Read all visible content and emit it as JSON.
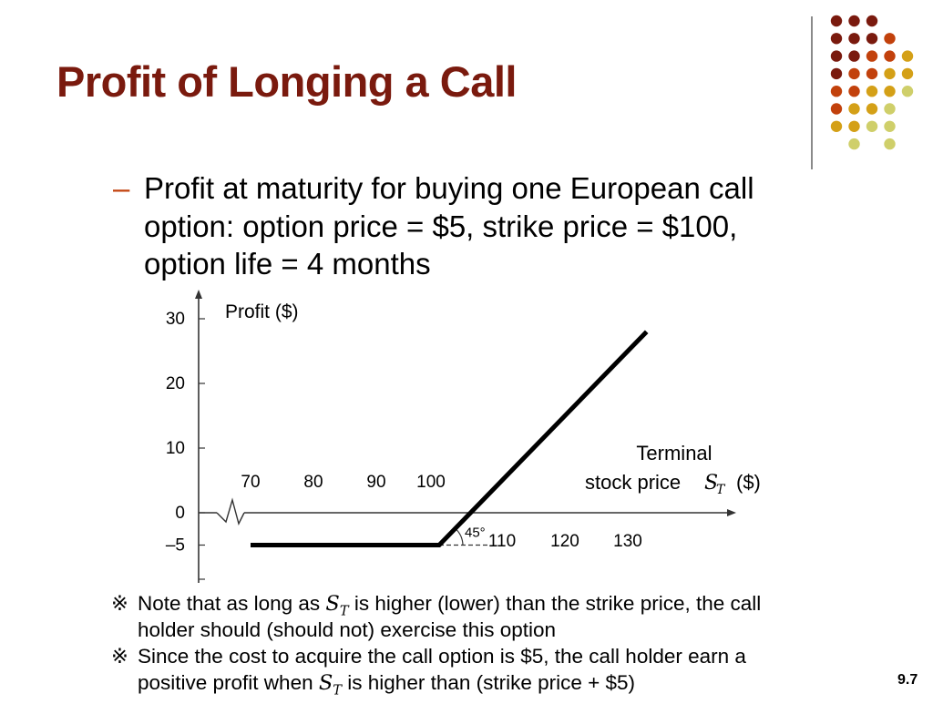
{
  "slide": {
    "title": "Profit of Longing a Call",
    "bullet_dash": "–",
    "bullet_lines": [
      "Profit at maturity for buying one European call",
      "option: option price = $5, strike price = $100,",
      "option life = 4 months"
    ],
    "notes": [
      {
        "mark": "※",
        "line1_before": "Note that as long as ",
        "line1_after": " is higher (lower) than the strike price, the call",
        "line2": "holder should (should not) exercise this option"
      },
      {
        "mark": "※",
        "line1": "Since the cost to acquire the call option is $5, the call holder earn a",
        "line2_before": "positive profit when ",
        "line2_after": " is higher than (strike price + $5)"
      }
    ],
    "symbol_base": "S",
    "symbol_sub": "T",
    "slide_number": "9.7",
    "colors": {
      "title": "#7a1a0e",
      "dash": "#c2410c",
      "dot_palette": [
        "#7a1a0e",
        "#c2410c",
        "#d4a017",
        "#cfcf6a"
      ]
    }
  },
  "chart_data": {
    "type": "line",
    "title": "",
    "ylabel": "Profit ($)",
    "xlabel_line1": "Terminal",
    "xlabel_line2": "stock price",
    "xlabel_unit": "($)",
    "x_ticks": [
      70,
      80,
      90,
      100,
      110,
      120,
      130
    ],
    "y_ticks": [
      30,
      20,
      10,
      0,
      -5
    ],
    "y_tick_labels": [
      "30",
      "20",
      "10",
      "0",
      "–5"
    ],
    "xlim": [
      60,
      150
    ],
    "ylim": [
      -10,
      33
    ],
    "series": [
      {
        "x": [
          70,
          100,
          133
        ],
        "y": [
          -5,
          -5,
          28
        ]
      }
    ],
    "annotation": "45°",
    "axis_break": true,
    "grid": false
  }
}
